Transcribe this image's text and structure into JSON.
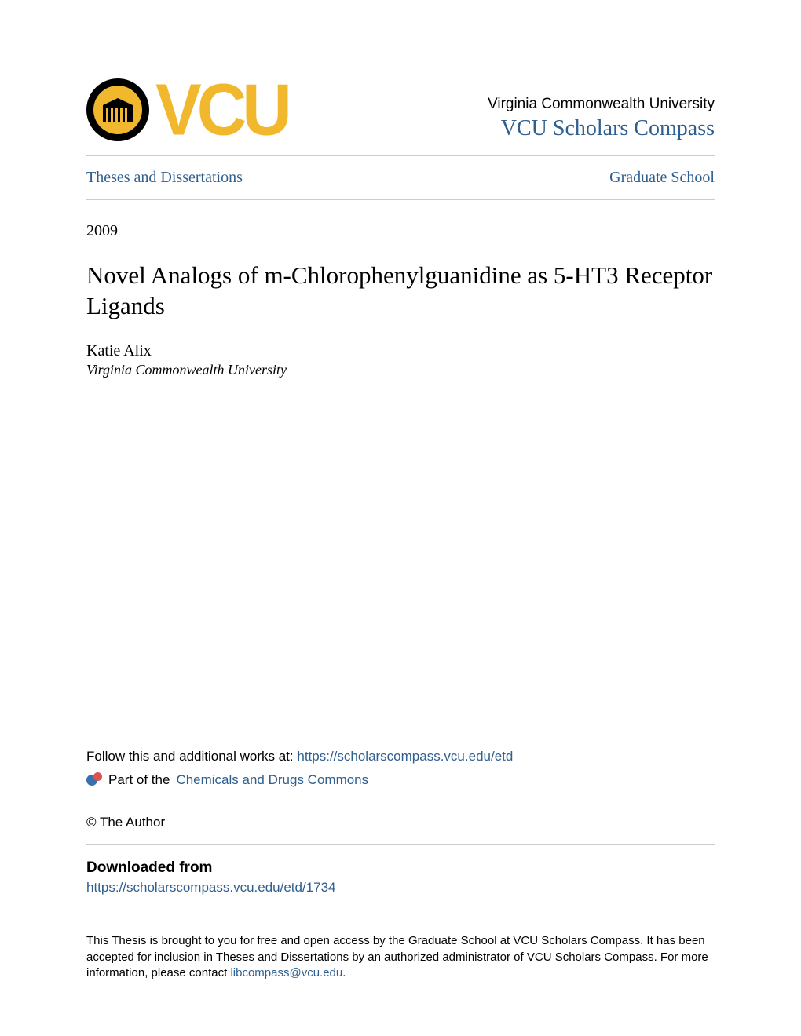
{
  "colors": {
    "link": "#2f5f8f",
    "accent": "#f1b82d",
    "text": "#000000",
    "divider": "#cccccc",
    "background": "#ffffff"
  },
  "header": {
    "logo_text": "VCU",
    "university_name": "Virginia Commonwealth University",
    "compass_name": "VCU Scholars Compass"
  },
  "nav": {
    "left": "Theses and Dissertations",
    "right": "Graduate School"
  },
  "year": "2009",
  "title": "Novel Analogs of m-Chlorophenylguanidine as 5-HT3 Receptor Ligands",
  "author": {
    "name": "Katie Alix",
    "affiliation": "Virginia Commonwealth University"
  },
  "follow": {
    "prefix": "Follow this and additional works at: ",
    "url": "https://scholarscompass.vcu.edu/etd"
  },
  "part_of": {
    "prefix": "Part of the ",
    "link_text": "Chemicals and Drugs Commons"
  },
  "copyright": "© The Author",
  "downloaded": {
    "heading": "Downloaded from",
    "url": "https://scholarscompass.vcu.edu/etd/1734"
  },
  "footer": {
    "text_a": "This Thesis is brought to you for free and open access by the Graduate School at VCU Scholars Compass. It has been accepted for inclusion in Theses and Dissertations by an authorized administrator of VCU Scholars Compass. For more information, please contact ",
    "email": "libcompass@vcu.edu",
    "text_b": "."
  }
}
